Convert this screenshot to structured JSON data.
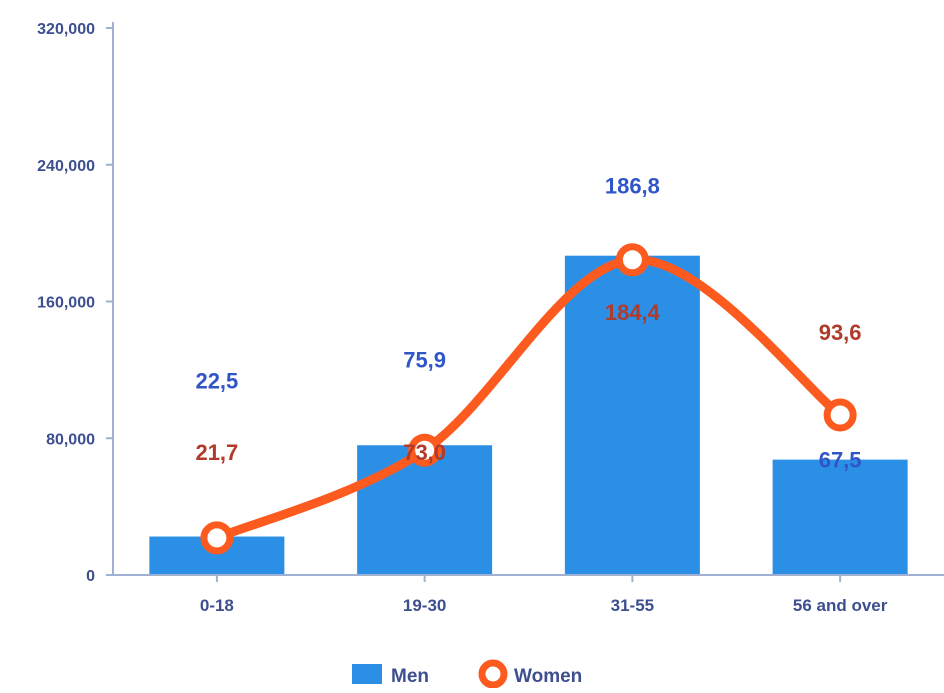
{
  "chart_data": {
    "type": "bar",
    "categories": [
      "0-18",
      "19-30",
      "31-55",
      "56 and over"
    ],
    "series": [
      {
        "name": "Men",
        "type": "bar",
        "values": [
          22500,
          75900,
          186800,
          67500
        ],
        "labels": [
          "22,5",
          "75,9",
          "186,8",
          "67,5"
        ]
      },
      {
        "name": "Women",
        "type": "line",
        "values": [
          21700,
          73000,
          184400,
          93600
        ],
        "labels": [
          "21,7",
          "73,0",
          "184,4",
          "93,6"
        ]
      }
    ],
    "y_ticks": [
      "0",
      "80,000",
      "160,000",
      "240,000",
      "320,000"
    ],
    "y_tick_values": [
      0,
      80000,
      160000,
      240000,
      320000
    ],
    "ylim": [
      0,
      320000
    ],
    "legend": {
      "position": "bottom",
      "items": [
        "Men",
        "Women"
      ]
    },
    "grid": false
  },
  "colors": {
    "men": "#2b8fe6",
    "women": "#fc5a1e",
    "men_label": "#2f55c9",
    "women_label": "#b23a2a",
    "axis": "#3d4f8f"
  }
}
